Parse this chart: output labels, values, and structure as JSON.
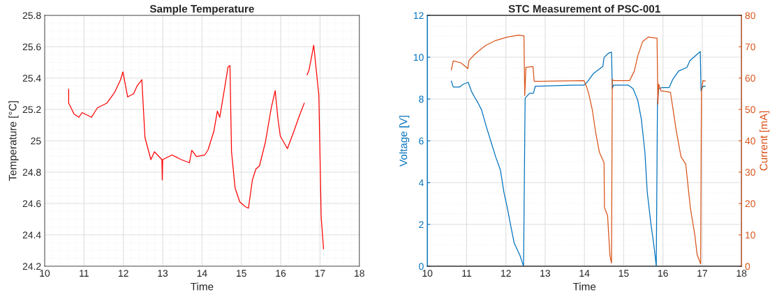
{
  "chart_data": [
    {
      "type": "line",
      "title": "Sample Temperature",
      "xlabel": "Time",
      "ylabel": "Temperature [°C]",
      "xlim": [
        10,
        18
      ],
      "xticks": [
        10,
        11,
        12,
        13,
        14,
        15,
        16,
        17,
        18
      ],
      "ylim": [
        24.2,
        25.8
      ],
      "yticks": [
        24.2,
        24.4,
        24.6,
        24.8,
        25,
        25.2,
        25.4,
        25.6,
        25.8
      ],
      "grid": true,
      "series": [
        {
          "color": "#ff0000",
          "x": [
            10.61,
            10.61,
            10.75,
            10.87,
            10.95,
            11.19,
            11.34,
            11.58,
            11.78,
            11.93,
            11.99,
            12.11,
            12.26,
            12.35,
            12.47,
            12.55,
            12.7,
            12.79,
            12.98,
            12.99,
            13.0,
            13.24,
            13.47,
            13.68,
            13.74,
            13.86,
            14.07,
            14.15,
            14.3,
            14.39,
            14.45,
            14.57,
            14.66,
            14.71,
            14.75,
            14.84,
            14.96,
            15.1,
            15.18,
            15.28,
            15.37,
            15.46,
            15.61,
            15.76,
            15.86,
            15.93,
            15.99,
            16.17,
            16.32,
            16.49,
            16.6,
            16.63,
            16.67,
            16.72,
            16.84,
            16.97,
            17.03,
            17.09
          ],
          "values": [
            25.33,
            25.24,
            25.17,
            25.15,
            25.18,
            25.15,
            25.21,
            25.24,
            25.31,
            25.39,
            25.44,
            25.28,
            25.3,
            25.35,
            25.39,
            25.02,
            24.88,
            24.93,
            24.88,
            24.75,
            24.88,
            24.91,
            24.88,
            24.86,
            24.94,
            24.9,
            24.91,
            24.94,
            25.06,
            25.19,
            25.15,
            25.33,
            25.47,
            25.48,
            24.93,
            24.7,
            24.61,
            24.58,
            24.57,
            24.75,
            24.82,
            24.84,
            24.99,
            25.21,
            25.32,
            25.14,
            25.03,
            24.95,
            25.05,
            25.17,
            25.24,
            null,
            25.42,
            25.45,
            25.61,
            25.29,
            24.51,
            24.31
          ]
        }
      ]
    },
    {
      "type": "line",
      "title": "STC Measurement of PSC-001",
      "xlabel": "Time",
      "ylabel": "Voltage [V]",
      "y2label": "Current [mA]",
      "xlim": [
        10,
        18
      ],
      "xticks": [
        10,
        11,
        12,
        13,
        14,
        15,
        16,
        17,
        18
      ],
      "ylim": [
        0,
        12
      ],
      "yticks": [
        0,
        2,
        4,
        6,
        8,
        10,
        12
      ],
      "y2lim": [
        0,
        80
      ],
      "y2ticks": [
        0,
        10,
        20,
        30,
        40,
        50,
        60,
        70,
        80
      ],
      "grid": true,
      "series": [
        {
          "color": "#0072bd",
          "axis": "y",
          "x": [
            10.61,
            10.66,
            10.82,
            10.91,
            11.04,
            11.12,
            11.2,
            11.29,
            11.38,
            11.5,
            11.62,
            11.74,
            11.86,
            11.95,
            12.04,
            12.12,
            12.21,
            12.36,
            12.42,
            12.45,
            12.49,
            12.6,
            12.7,
            12.75,
            12.87,
            13.7,
            13.99,
            14.08,
            14.23,
            14.47,
            14.5,
            14.62,
            14.69,
            14.71,
            14.74,
            15.12,
            15.24,
            15.36,
            15.45,
            15.54,
            15.6,
            15.69,
            15.78,
            15.83,
            15.86,
            15.89,
            15.98,
            16.16,
            16.25,
            16.4,
            16.61,
            16.69,
            16.95,
            16.97,
            17.02,
            17.08
          ],
          "values": [
            8.86,
            8.57,
            8.57,
            8.7,
            8.8,
            8.38,
            8.1,
            7.82,
            7.48,
            6.69,
            5.96,
            5.23,
            4.61,
            3.54,
            2.76,
            1.97,
            1.12,
            0.51,
            0.17,
            0,
            8.04,
            8.27,
            8.27,
            8.61,
            8.61,
            8.66,
            8.66,
            8.83,
            9.22,
            9.56,
            9.99,
            10.2,
            10.24,
            8.5,
            8.66,
            8.66,
            8.49,
            7.93,
            7.03,
            5.46,
            3.54,
            2.08,
            0.84,
            0,
            7.82,
            8.49,
            8.55,
            8.55,
            8.94,
            9.34,
            9.51,
            9.84,
            10.27,
            8.38,
            8.61,
            8.61
          ]
        },
        {
          "color": "#d95319",
          "axis": "y2",
          "x": [
            10.61,
            10.66,
            10.85,
            10.94,
            11.03,
            11.06,
            11.2,
            11.38,
            11.5,
            11.74,
            12.04,
            12.33,
            12.46,
            12.48,
            12.51,
            12.69,
            12.72,
            12.87,
            13.99,
            14.05,
            14.11,
            14.2,
            14.29,
            14.38,
            14.5,
            14.51,
            14.59,
            14.65,
            14.69,
            14.71,
            14.74,
            15.15,
            15.27,
            15.36,
            15.48,
            15.63,
            15.85,
            15.87,
            15.89,
            15.95,
            16.19,
            16.25,
            16.34,
            16.46,
            16.58,
            16.7,
            16.81,
            16.87,
            16.96,
            16.98,
            17.02,
            17.08
          ],
          "values": [
            62.6,
            65.5,
            64.9,
            64.0,
            63.0,
            65.6,
            67.5,
            69.4,
            70.5,
            72.0,
            73.1,
            73.7,
            73.5,
            54.4,
            63.4,
            63.7,
            59.0,
            59.0,
            59.2,
            57.4,
            55.1,
            49.9,
            42.4,
            36.4,
            33.0,
            18.7,
            16.1,
            3.4,
            1.0,
            59.6,
            59.2,
            59.2,
            62.2,
            67.1,
            71.6,
            73.1,
            72.7,
            51.7,
            58.1,
            55.9,
            55.5,
            50.6,
            43.1,
            34.9,
            32.6,
            18.4,
            10.1,
            3.7,
            0.7,
            55.9,
            59.2,
            59.1
          ]
        }
      ]
    }
  ]
}
